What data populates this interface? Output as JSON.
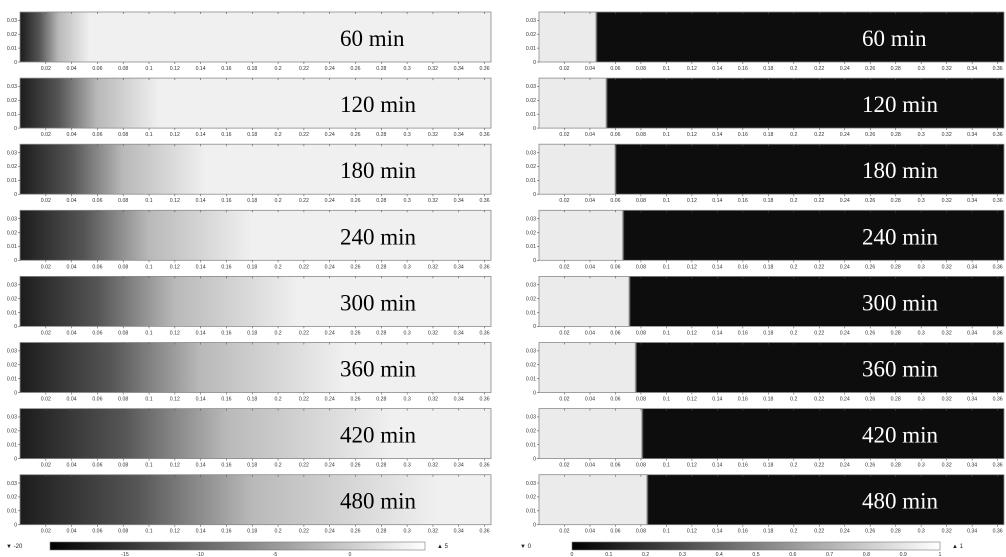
{
  "chart_data": [
    {
      "type": "heatmap",
      "panel": "left",
      "x_ticks": [
        "0.02",
        "0.04",
        "0.06",
        "0.08",
        "0.1",
        "0.12",
        "0.14",
        "0.16",
        "0.18",
        "0.2",
        "0.22",
        "0.24",
        "0.26",
        "0.28",
        "0.3",
        "0.32",
        "0.34",
        "0.36"
      ],
      "y_ticks": [
        "0",
        "0.01",
        "0.02",
        "0.03"
      ],
      "xlim": [
        0,
        0.365
      ],
      "ylim": [
        0,
        0.036
      ],
      "frames": [
        {
          "label": "60 min",
          "dark_end": 0.03
        },
        {
          "label": "120 min",
          "dark_end": 0.06
        },
        {
          "label": "180 min",
          "dark_end": 0.08
        },
        {
          "label": "240 min",
          "dark_end": 0.1
        },
        {
          "label": "300 min",
          "dark_end": 0.12
        },
        {
          "label": "360 min",
          "dark_end": 0.14
        },
        {
          "label": "420 min",
          "dark_end": 0.16
        },
        {
          "label": "480 min",
          "dark_end": 0.18
        }
      ],
      "colorbar": {
        "min_label": "▼ -20",
        "max_label": "▲ 5",
        "ticks": [
          "-15",
          "-10",
          "-5",
          "0"
        ],
        "tick_values": [
          -15,
          -10,
          -5,
          0
        ],
        "range": [
          -20,
          5
        ]
      },
      "colors": {
        "dark": "#1c1c1c",
        "light": "#f0f0f0"
      }
    },
    {
      "type": "heatmap",
      "panel": "right",
      "x_ticks": [
        "0.02",
        "0.04",
        "0.06",
        "0.08",
        "0.1",
        "0.12",
        "0.14",
        "0.16",
        "0.18",
        "0.2",
        "0.22",
        "0.24",
        "0.26",
        "0.28",
        "0.3",
        "0.32",
        "0.34",
        "0.36"
      ],
      "y_ticks": [
        "0",
        "0.01",
        "0.02",
        "0.03"
      ],
      "xlim": [
        0,
        0.365
      ],
      "ylim": [
        0,
        0.036
      ],
      "frames": [
        {
          "label": "60 min",
          "front": 0.045
        },
        {
          "label": "120 min",
          "front": 0.053
        },
        {
          "label": "180 min",
          "front": 0.06
        },
        {
          "label": "240 min",
          "front": 0.066
        },
        {
          "label": "300 min",
          "front": 0.071
        },
        {
          "label": "360 min",
          "front": 0.076
        },
        {
          "label": "420 min",
          "front": 0.081
        },
        {
          "label": "480 min",
          "front": 0.085
        }
      ],
      "colorbar": {
        "min_label": "▼ 0",
        "max_label": "▲ 1",
        "ticks": [
          "0",
          "0.1",
          "0.2",
          "0.3",
          "0.4",
          "0.5",
          "0.6",
          "0.7",
          "0.8",
          "0.9",
          "1"
        ],
        "tick_values": [
          0,
          0.1,
          0.2,
          0.3,
          0.4,
          0.5,
          0.6,
          0.7,
          0.8,
          0.9,
          1
        ],
        "range": [
          0,
          1
        ]
      },
      "colors": {
        "dark": "#0d0d0d",
        "light": "#ebebeb"
      }
    }
  ]
}
